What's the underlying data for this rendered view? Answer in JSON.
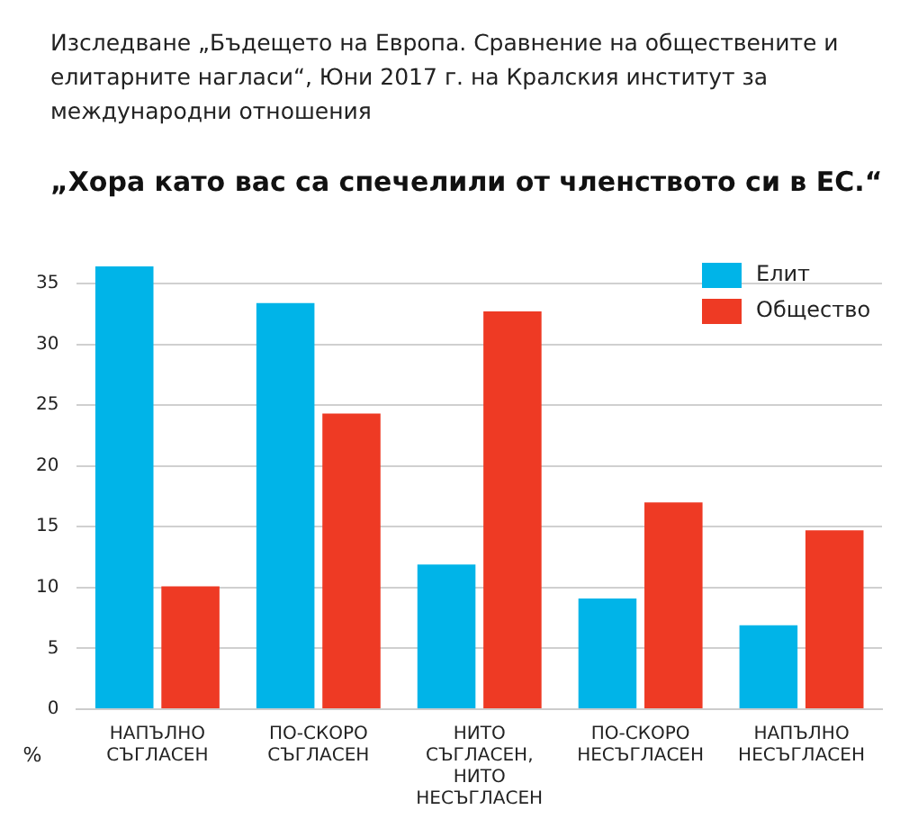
{
  "chart_data": {
    "type": "bar",
    "title": "„Хора като вас са спечелили от членството си в ЕС.“",
    "subtitle": "Изследване „Бъдещето на Европа. Сравнение на обществените и елитарните нагласи“, Юни 2017 г. на Кралския институт за международни отношения",
    "ylabel": "%",
    "categories": [
      "НАПЪЛНО СЪГЛАСЕН",
      "ПО-СКОРО СЪГЛАСЕН",
      "НИТО СЪГЛАСЕН, НИТО НЕСЪГЛАСЕН",
      "ПО-СКОРО НЕСЪГЛАСЕН",
      "НАПЪЛНО НЕСЪГЛАСЕН"
    ],
    "series": [
      {
        "name": "Елит",
        "color": "#00b4e8",
        "values": [
          36.4,
          33.4,
          11.9,
          9.1,
          6.9
        ]
      },
      {
        "name": "Общество",
        "color": "#ee3a24",
        "values": [
          10.1,
          24.3,
          32.7,
          17.0,
          14.7
        ]
      }
    ],
    "ylim": [
      0,
      37
    ],
    "yticks": [
      0,
      5,
      10,
      15,
      20,
      25,
      30,
      35
    ],
    "grid": "y",
    "legend": "top right"
  }
}
